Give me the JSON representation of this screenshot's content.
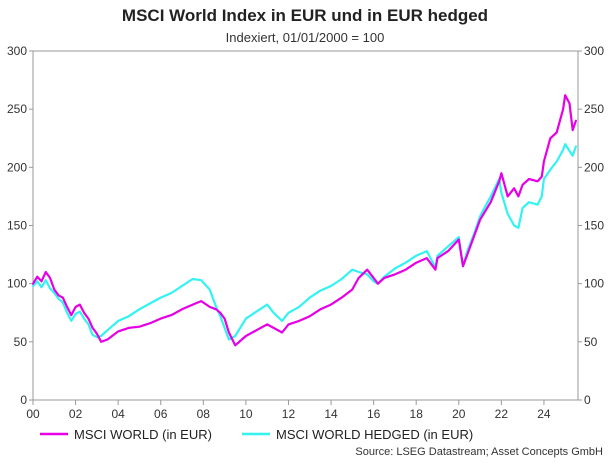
{
  "chart_data": {
    "type": "line",
    "title": "MSCI World Index in EUR und in EUR hedged",
    "subtitle": "Indexiert, 01/01/2000 = 100",
    "source": "Source: LSEG Datastream; Asset Concepts GmbH",
    "ylim": [
      0,
      300
    ],
    "y_ticks": [
      0,
      50,
      100,
      150,
      200,
      250,
      300
    ],
    "y_tick_labels": [
      "0",
      "50",
      "100",
      "150",
      "200",
      "250",
      "300"
    ],
    "xlim": [
      2000,
      2025.6
    ],
    "x_ticks": [
      2000,
      2002,
      2004,
      2006,
      2008,
      2010,
      2012,
      2014,
      2016,
      2018,
      2020,
      2022,
      2024
    ],
    "x_tick_labels": [
      "00",
      "02",
      "04",
      "06",
      "08",
      "10",
      "12",
      "14",
      "16",
      "18",
      "20",
      "22",
      "24"
    ],
    "grid": false,
    "legend_position": "bottom",
    "series": [
      {
        "name": "MSCI WORLD (in EUR)",
        "color": "#e600e6",
        "x": [
          2000.0,
          2000.2,
          2000.4,
          2000.6,
          2000.8,
          2001.0,
          2001.2,
          2001.4,
          2001.6,
          2001.8,
          2002.0,
          2002.2,
          2002.4,
          2002.6,
          2002.8,
          2003.0,
          2003.2,
          2003.5,
          2004.0,
          2004.5,
          2005.0,
          2005.5,
          2006.0,
          2006.5,
          2007.0,
          2007.5,
          2007.9,
          2008.3,
          2008.6,
          2008.8,
          2009.0,
          2009.2,
          2009.5,
          2010.0,
          2010.5,
          2011.0,
          2011.3,
          2011.7,
          2012.0,
          2012.5,
          2013.0,
          2013.5,
          2014.0,
          2014.5,
          2015.0,
          2015.3,
          2015.7,
          2016.0,
          2016.2,
          2016.5,
          2017.0,
          2017.5,
          2018.0,
          2018.5,
          2018.9,
          2019.0,
          2019.5,
          2020.0,
          2020.2,
          2020.4,
          2020.7,
          2021.0,
          2021.5,
          2021.9,
          2022.0,
          2022.3,
          2022.6,
          2022.8,
          2023.0,
          2023.3,
          2023.7,
          2023.9,
          2024.0,
          2024.3,
          2024.6,
          2024.9,
          2025.0,
          2025.2,
          2025.35,
          2025.5
        ],
        "values": [
          100,
          106,
          102,
          110,
          105,
          95,
          90,
          88,
          80,
          73,
          80,
          82,
          75,
          70,
          62,
          57,
          50,
          52,
          59,
          62,
          63,
          66,
          70,
          73,
          78,
          82,
          85,
          80,
          78,
          75,
          70,
          58,
          47,
          55,
          60,
          65,
          62,
          58,
          65,
          68,
          72,
          78,
          82,
          88,
          95,
          105,
          112,
          105,
          100,
          105,
          108,
          112,
          118,
          122,
          112,
          122,
          128,
          138,
          115,
          125,
          140,
          155,
          170,
          188,
          195,
          175,
          182,
          175,
          185,
          190,
          188,
          192,
          205,
          225,
          230,
          250,
          262,
          255,
          232,
          240
        ],
        "end_value": 242
      },
      {
        "name": "MSCI WORLD HEDGED (in EUR)",
        "color": "#33f2f2",
        "x": [
          2000.0,
          2000.2,
          2000.4,
          2000.6,
          2000.8,
          2001.0,
          2001.2,
          2001.4,
          2001.6,
          2001.8,
          2002.0,
          2002.2,
          2002.4,
          2002.6,
          2002.8,
          2003.0,
          2003.2,
          2003.5,
          2004.0,
          2004.5,
          2005.0,
          2005.5,
          2006.0,
          2006.5,
          2007.0,
          2007.5,
          2007.9,
          2008.3,
          2008.6,
          2008.8,
          2009.0,
          2009.2,
          2009.5,
          2010.0,
          2010.5,
          2011.0,
          2011.3,
          2011.7,
          2012.0,
          2012.5,
          2013.0,
          2013.5,
          2014.0,
          2014.5,
          2015.0,
          2015.3,
          2015.7,
          2016.0,
          2016.2,
          2016.5,
          2017.0,
          2017.5,
          2018.0,
          2018.5,
          2018.9,
          2019.0,
          2019.5,
          2020.0,
          2020.2,
          2020.4,
          2020.7,
          2021.0,
          2021.5,
          2021.9,
          2022.0,
          2022.3,
          2022.6,
          2022.8,
          2023.0,
          2023.3,
          2023.7,
          2023.9,
          2024.0,
          2024.3,
          2024.6,
          2024.9,
          2025.0,
          2025.2,
          2025.35,
          2025.5
        ],
        "values": [
          98,
          102,
          97,
          103,
          96,
          92,
          87,
          84,
          75,
          68,
          74,
          76,
          70,
          65,
          56,
          54,
          55,
          60,
          68,
          72,
          78,
          83,
          88,
          92,
          98,
          104,
          103,
          95,
          80,
          72,
          62,
          52,
          55,
          70,
          76,
          82,
          75,
          68,
          75,
          80,
          88,
          94,
          98,
          104,
          112,
          110,
          108,
          102,
          100,
          106,
          113,
          118,
          124,
          128,
          114,
          124,
          132,
          140,
          115,
          128,
          142,
          158,
          175,
          190,
          178,
          160,
          150,
          148,
          165,
          170,
          168,
          175,
          190,
          198,
          205,
          215,
          220,
          214,
          210,
          218
        ],
        "end_value": 221
      }
    ],
    "legend": [
      {
        "label": "MSCI WORLD (in EUR)",
        "color": "#e600e6"
      },
      {
        "label": "MSCI WORLD HEDGED (in EUR)",
        "color": "#33f2f2"
      }
    ]
  }
}
